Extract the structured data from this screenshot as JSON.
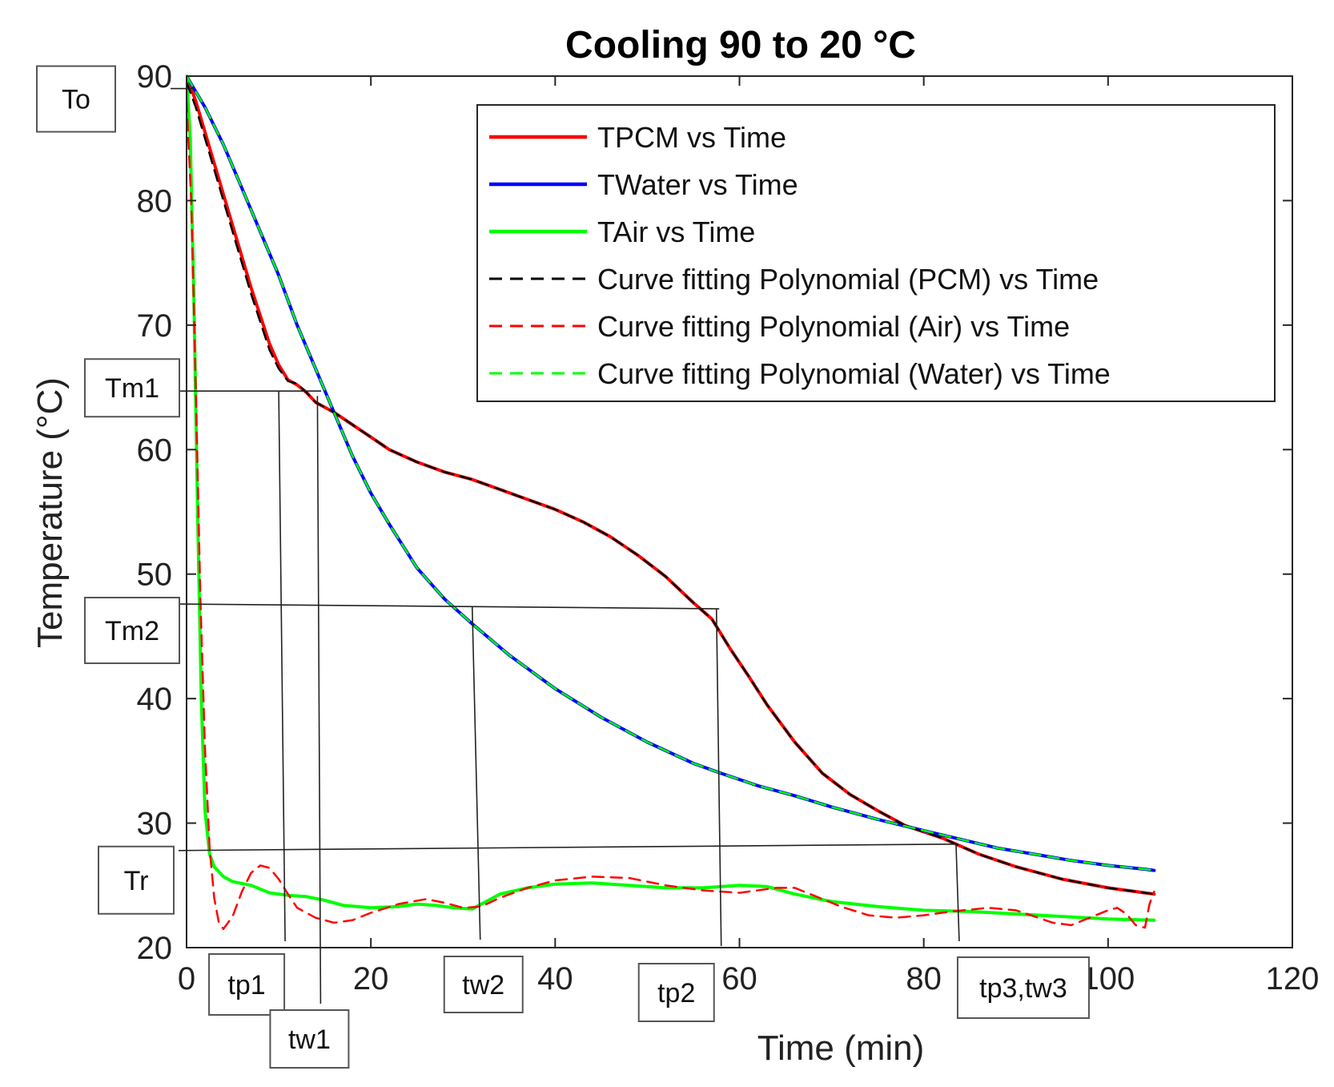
{
  "chart_data": {
    "type": "line",
    "title": "Cooling 90 to 20 °C",
    "xlabel": "Time (min)",
    "ylabel": "Temperature (°C)",
    "xlim": [
      0,
      120
    ],
    "ylim": [
      20,
      90
    ],
    "xticks": [
      0,
      20,
      40,
      60,
      80,
      100,
      120
    ],
    "yticks": [
      20,
      30,
      40,
      50,
      60,
      70,
      80,
      90
    ],
    "grid": false,
    "legend_position": "top-right",
    "series": [
      {
        "name": "TPCM vs Time",
        "color": "#ff0000",
        "style": "solid",
        "points": [
          [
            0,
            90
          ],
          [
            1,
            88
          ],
          [
            3,
            83
          ],
          [
            5,
            78
          ],
          [
            7,
            73
          ],
          [
            9,
            68.5
          ],
          [
            10,
            66.8
          ],
          [
            11,
            65.6
          ],
          [
            12,
            65.2
          ],
          [
            13,
            64.6
          ],
          [
            14,
            63.8
          ],
          [
            16,
            63
          ],
          [
            18,
            62
          ],
          [
            20,
            61
          ],
          [
            22,
            60
          ],
          [
            25,
            59
          ],
          [
            28,
            58.2
          ],
          [
            31,
            57.6
          ],
          [
            34,
            56.8
          ],
          [
            37,
            56
          ],
          [
            40,
            55.2
          ],
          [
            43,
            54.2
          ],
          [
            46,
            53
          ],
          [
            49,
            51.5
          ],
          [
            52,
            49.8
          ],
          [
            55,
            47.7
          ],
          [
            57,
            46.4
          ],
          [
            59,
            44
          ],
          [
            61,
            41.8
          ],
          [
            63,
            39.5
          ],
          [
            66,
            36.5
          ],
          [
            69,
            34
          ],
          [
            72,
            32.3
          ],
          [
            75,
            31
          ],
          [
            78,
            29.8
          ],
          [
            82,
            28.8
          ],
          [
            86,
            27.5
          ],
          [
            90,
            26.5
          ],
          [
            95,
            25.5
          ],
          [
            100,
            24.8
          ],
          [
            104,
            24.4
          ],
          [
            105,
            24.3
          ]
        ]
      },
      {
        "name": "TWater vs Time",
        "color": "#0000ff",
        "style": "solid",
        "points": [
          [
            0,
            90
          ],
          [
            2,
            87.5
          ],
          [
            4,
            84.5
          ],
          [
            6,
            81
          ],
          [
            8,
            77.5
          ],
          [
            10,
            74
          ],
          [
            12,
            70
          ],
          [
            14,
            66.5
          ],
          [
            16,
            63
          ],
          [
            18,
            59.5
          ],
          [
            20,
            56.5
          ],
          [
            22,
            54
          ],
          [
            25,
            50.5
          ],
          [
            28,
            48
          ],
          [
            31,
            46
          ],
          [
            35,
            43.5
          ],
          [
            40,
            40.8
          ],
          [
            45,
            38.5
          ],
          [
            50,
            36.5
          ],
          [
            55,
            34.8
          ],
          [
            58,
            34
          ],
          [
            62,
            33
          ],
          [
            66,
            32.2
          ],
          [
            70,
            31.3
          ],
          [
            75,
            30.3
          ],
          [
            80,
            29.4
          ],
          [
            84,
            28.7
          ],
          [
            88,
            28
          ],
          [
            92,
            27.5
          ],
          [
            96,
            27
          ],
          [
            100,
            26.6
          ],
          [
            104,
            26.3
          ],
          [
            105,
            26.2
          ]
        ]
      },
      {
        "name": "TAir vs Time",
        "color": "#00ff00",
        "style": "solid",
        "points": [
          [
            0,
            90
          ],
          [
            0.4,
            85
          ],
          [
            0.8,
            72
          ],
          [
            1.2,
            55
          ],
          [
            1.6,
            40
          ],
          [
            2,
            31
          ],
          [
            2.5,
            27.5
          ],
          [
            3,
            26.5
          ],
          [
            4,
            25.7
          ],
          [
            5,
            25.3
          ],
          [
            7,
            25
          ],
          [
            9,
            24.4
          ],
          [
            11,
            24.2
          ],
          [
            13,
            24.1
          ],
          [
            15,
            23.8
          ],
          [
            17,
            23.4
          ],
          [
            20,
            23.2
          ],
          [
            23,
            23.3
          ],
          [
            25,
            23.5
          ],
          [
            27,
            23.4
          ],
          [
            29,
            23.2
          ],
          [
            31,
            23.1
          ],
          [
            32,
            23.5
          ],
          [
            34,
            24.3
          ],
          [
            37,
            24.8
          ],
          [
            40,
            25.1
          ],
          [
            44,
            25.2
          ],
          [
            48,
            25
          ],
          [
            52,
            24.8
          ],
          [
            56,
            24.8
          ],
          [
            60,
            25
          ],
          [
            63,
            24.9
          ],
          [
            66,
            24.3
          ],
          [
            70,
            23.7
          ],
          [
            75,
            23.3
          ],
          [
            80,
            23
          ],
          [
            85,
            22.9
          ],
          [
            90,
            22.7
          ],
          [
            95,
            22.5
          ],
          [
            100,
            22.3
          ],
          [
            105,
            22.2
          ]
        ]
      },
      {
        "name": "Curve fitting Polynomial (PCM) vs Time",
        "color": "#000000",
        "style": "dashed",
        "points": [
          [
            0,
            89.5
          ],
          [
            1,
            87.5
          ],
          [
            3,
            82.5
          ],
          [
            5,
            77.5
          ],
          [
            7,
            72.5
          ],
          [
            9,
            68
          ],
          [
            10,
            66.5
          ],
          [
            11,
            65.5
          ],
          [
            12,
            65.3
          ],
          [
            13,
            64.6
          ],
          [
            14,
            63.8
          ],
          [
            16,
            63
          ],
          [
            18,
            62
          ],
          [
            20,
            61
          ],
          [
            22,
            60
          ],
          [
            25,
            59
          ],
          [
            28,
            58.2
          ],
          [
            31,
            57.6
          ],
          [
            34,
            56.8
          ],
          [
            37,
            56
          ],
          [
            40,
            55.2
          ],
          [
            43,
            54.2
          ],
          [
            46,
            53
          ],
          [
            49,
            51.5
          ],
          [
            52,
            49.8
          ],
          [
            55,
            47.7
          ],
          [
            57,
            46.4
          ],
          [
            59,
            44
          ],
          [
            61,
            41.8
          ],
          [
            63,
            39.5
          ],
          [
            66,
            36.5
          ],
          [
            69,
            34
          ],
          [
            72,
            32.3
          ],
          [
            75,
            31
          ],
          [
            78,
            29.8
          ],
          [
            82,
            28.8
          ],
          [
            86,
            27.5
          ],
          [
            90,
            26.5
          ],
          [
            95,
            25.5
          ],
          [
            100,
            24.8
          ],
          [
            104,
            24.4
          ],
          [
            105,
            24.3
          ]
        ]
      },
      {
        "name": "Curve fitting Polynomial (Air) vs Time",
        "color": "#ff0000",
        "style": "dashed",
        "points": [
          [
            0,
            88
          ],
          [
            0.5,
            80
          ],
          [
            1,
            65
          ],
          [
            1.5,
            48
          ],
          [
            2,
            36
          ],
          [
            2.5,
            28
          ],
          [
            3,
            24
          ],
          [
            3.5,
            22
          ],
          [
            4,
            21.5
          ],
          [
            5,
            22.5
          ],
          [
            6,
            24.5
          ],
          [
            7,
            26
          ],
          [
            8,
            26.6
          ],
          [
            9,
            26.4
          ],
          [
            10,
            25.5
          ],
          [
            11,
            24.3
          ],
          [
            12,
            23.2
          ],
          [
            14,
            22.4
          ],
          [
            16,
            22
          ],
          [
            18,
            22.2
          ],
          [
            20,
            22.8
          ],
          [
            23,
            23.5
          ],
          [
            26,
            23.9
          ],
          [
            28,
            23.6
          ],
          [
            30,
            23.2
          ],
          [
            32,
            23.3
          ],
          [
            34,
            24
          ],
          [
            37,
            24.8
          ],
          [
            40,
            25.4
          ],
          [
            44,
            25.7
          ],
          [
            48,
            25.6
          ],
          [
            52,
            25
          ],
          [
            56,
            24.6
          ],
          [
            60,
            24.4
          ],
          [
            64,
            24.8
          ],
          [
            66,
            24.8
          ],
          [
            68,
            24.2
          ],
          [
            71,
            23.3
          ],
          [
            74,
            22.6
          ],
          [
            77,
            22.4
          ],
          [
            80,
            22.6
          ],
          [
            83,
            22.9
          ],
          [
            87,
            23.2
          ],
          [
            90,
            23
          ],
          [
            92,
            22.5
          ],
          [
            94,
            22
          ],
          [
            96,
            21.8
          ],
          [
            98,
            22.4
          ],
          [
            100,
            23
          ],
          [
            101,
            23.2
          ],
          [
            102,
            22.7
          ],
          [
            103,
            21.8
          ],
          [
            104,
            21.6
          ],
          [
            104.5,
            23.5
          ],
          [
            105,
            24.5
          ]
        ]
      },
      {
        "name": "Curve fitting Polynomial (Water) vs Time",
        "color": "#00ff00",
        "style": "dashed",
        "points": [
          [
            0,
            90
          ],
          [
            2,
            87.5
          ],
          [
            4,
            84.5
          ],
          [
            6,
            81
          ],
          [
            8,
            77.5
          ],
          [
            10,
            74
          ],
          [
            12,
            70
          ],
          [
            14,
            66.5
          ],
          [
            16,
            63
          ],
          [
            18,
            59.5
          ],
          [
            20,
            56.5
          ],
          [
            22,
            54
          ],
          [
            25,
            50.5
          ],
          [
            28,
            48
          ],
          [
            31,
            46
          ],
          [
            35,
            43.5
          ],
          [
            40,
            40.8
          ],
          [
            45,
            38.5
          ],
          [
            50,
            36.5
          ],
          [
            55,
            34.8
          ],
          [
            58,
            34
          ],
          [
            62,
            33
          ],
          [
            66,
            32.2
          ],
          [
            70,
            31.3
          ],
          [
            75,
            30.3
          ],
          [
            80,
            29.4
          ],
          [
            84,
            28.7
          ],
          [
            88,
            28
          ],
          [
            92,
            27.5
          ],
          [
            96,
            27
          ],
          [
            100,
            26.6
          ],
          [
            104,
            26.3
          ],
          [
            105,
            26.2
          ]
        ]
      }
    ],
    "reference_lines": [
      {
        "label": "To",
        "y": 89
      },
      {
        "label": "Tm1",
        "y": 64.7
      },
      {
        "label": "Tm2",
        "y": 47.6
      },
      {
        "label": "Tr",
        "y": 27.8
      }
    ],
    "time_markers": [
      {
        "label": "tp1",
        "x": 10
      },
      {
        "label": "tw1",
        "x": 14.2
      },
      {
        "label": "tw2",
        "x": 31
      },
      {
        "label": "tp2",
        "x": 57.5
      },
      {
        "label": "tp3,tw3",
        "x": 83.5
      }
    ]
  }
}
